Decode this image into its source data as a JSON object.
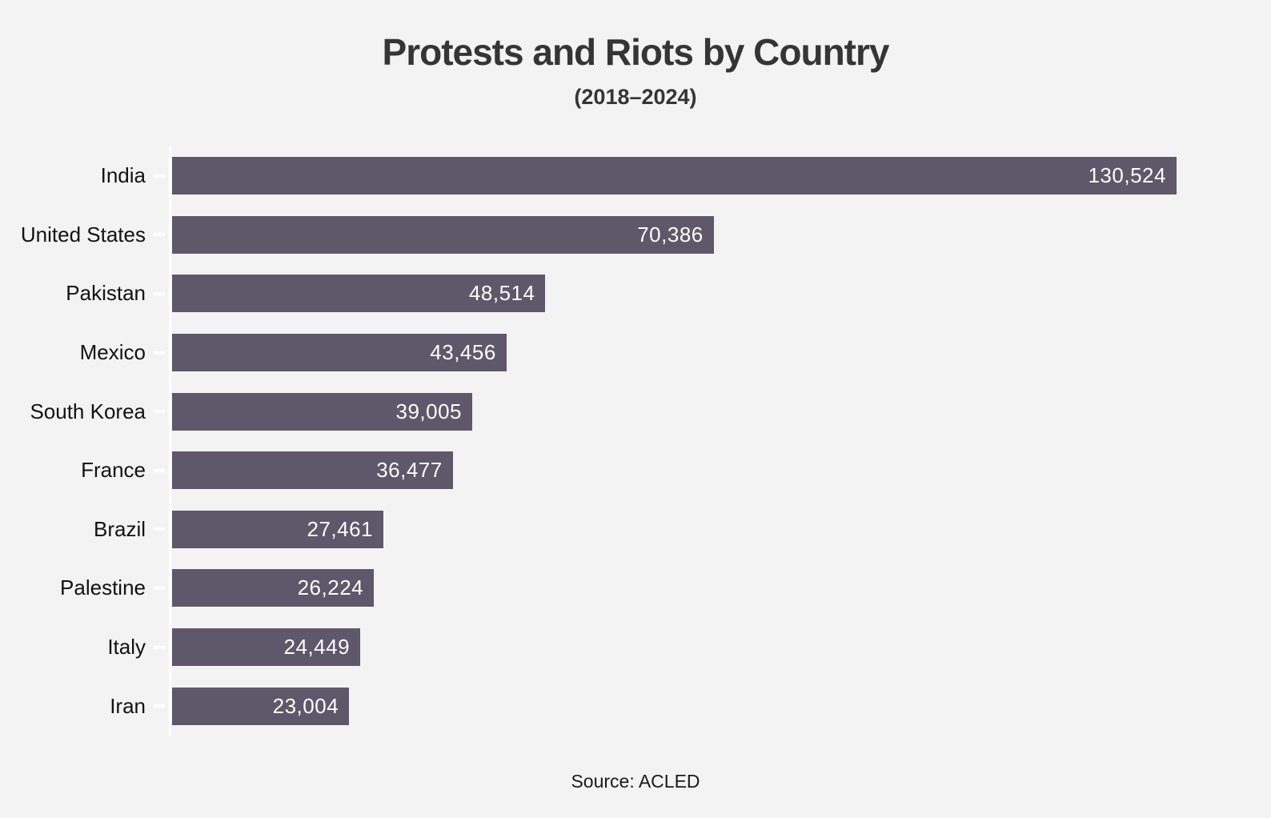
{
  "header": {
    "title": "Protests and Riots by Country",
    "subtitle": "(2018–2024)"
  },
  "footer": {
    "source": "Source: ACLED"
  },
  "chart_data": {
    "type": "bar",
    "orientation": "horizontal",
    "title": "Protests and Riots by Country",
    "subtitle": "(2018–2024)",
    "source": "Source: ACLED",
    "categories": [
      "India",
      "United States",
      "Pakistan",
      "Mexico",
      "South Korea",
      "France",
      "Brazil",
      "Palestine",
      "Italy",
      "Iran"
    ],
    "values": [
      130524,
      70386,
      48514,
      43456,
      39005,
      36477,
      27461,
      26224,
      24449,
      23004
    ],
    "value_labels": [
      "130,524",
      "70,386",
      "48,514",
      "43,456",
      "39,005",
      "36,477",
      "27,461",
      "26,224",
      "24,449",
      "23,004"
    ],
    "xlim": [
      0,
      142800
    ],
    "grid": false,
    "legend": false,
    "value_label_position": "inside-end",
    "bar_color": "#5f576a",
    "background_color": "#f4f3f4",
    "axis_color": "#ffffff",
    "label_color": "#121212",
    "value_text_color": "#ffffff"
  }
}
